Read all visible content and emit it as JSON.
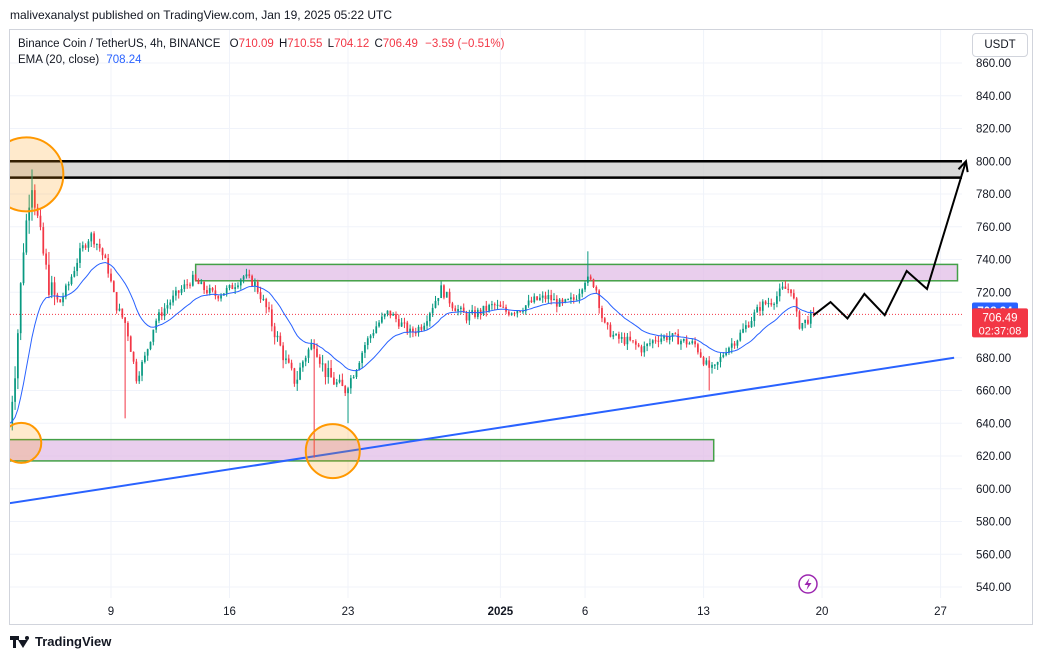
{
  "header": {
    "publisher": "malivexanalyst published on TradingView.com, Jan 19, 2025 05:22 UTC"
  },
  "legend": {
    "symbol": "Binance Coin / TetherUS, 4h, BINANCE",
    "open_label": "O",
    "open": "710.09",
    "high_label": "H",
    "high": "710.55",
    "low_label": "L",
    "low": "704.12",
    "close_label": "C",
    "close": "706.49",
    "change": "−3.59 (−0.51%)",
    "ema_label": "EMA (20, close)",
    "ema_value": "708.24"
  },
  "currency_button": "USDT",
  "price_labels": {
    "ema": "708.24",
    "last": "706.49",
    "countdown": "02:37:08"
  },
  "footer": {
    "brand": "TradingView"
  },
  "colors": {
    "up": "#089981",
    "down": "#f23645",
    "ema": "#2962ff",
    "zone_fill": "#e1bee7",
    "zone_border": "#43a047",
    "circle": "#ff9800",
    "trendline": "#2962ff",
    "resistance_fill": "#cfcfcf"
  },
  "chart_data": {
    "type": "candlestick",
    "ylim": [
      535,
      870
    ],
    "yticks": [
      "860.00",
      "840.00",
      "820.00",
      "800.00",
      "780.00",
      "760.00",
      "740.00",
      "720.00",
      "700.00",
      "680.00",
      "660.00",
      "640.00",
      "620.00",
      "600.00",
      "580.00",
      "560.00",
      "540.00"
    ],
    "xticks": [
      {
        "label": "9",
        "day": 9
      },
      {
        "label": "16",
        "day": 16
      },
      {
        "label": "23",
        "day": 23
      },
      {
        "label": "2025",
        "day": 32
      },
      {
        "label": "6",
        "day": 37
      },
      {
        "label": "13",
        "day": 44
      },
      {
        "label": "20",
        "day": 51
      },
      {
        "label": "27",
        "day": 58
      }
    ],
    "xlim": [
      2.9,
      59
    ],
    "anchors": [
      {
        "day": 3.0,
        "price": 640
      },
      {
        "day": 3.4,
        "price": 680
      },
      {
        "day": 3.8,
        "price": 745
      },
      {
        "day": 4.3,
        "price": 790
      },
      {
        "day": 4.8,
        "price": 755
      },
      {
        "day": 5.3,
        "price": 725
      },
      {
        "day": 5.9,
        "price": 712
      },
      {
        "day": 6.5,
        "price": 725
      },
      {
        "day": 7.2,
        "price": 745
      },
      {
        "day": 7.8,
        "price": 755
      },
      {
        "day": 8.3,
        "price": 748
      },
      {
        "day": 8.8,
        "price": 735
      },
      {
        "day": 9.3,
        "price": 712
      },
      {
        "day": 9.9,
        "price": 700
      },
      {
        "day": 10.5,
        "price": 668
      },
      {
        "day": 11.0,
        "price": 680
      },
      {
        "day": 11.6,
        "price": 702
      },
      {
        "day": 12.3,
        "price": 712
      },
      {
        "day": 13.0,
        "price": 720
      },
      {
        "day": 13.8,
        "price": 728
      },
      {
        "day": 14.5,
        "price": 722
      },
      {
        "day": 15.2,
        "price": 718
      },
      {
        "day": 16.0,
        "price": 722
      },
      {
        "day": 16.8,
        "price": 730
      },
      {
        "day": 17.5,
        "price": 725
      },
      {
        "day": 18.1,
        "price": 712
      },
      {
        "day": 18.7,
        "price": 695
      },
      {
        "day": 19.3,
        "price": 678
      },
      {
        "day": 19.9,
        "price": 665
      },
      {
        "day": 20.4,
        "price": 680
      },
      {
        "day": 21.0,
        "price": 690
      },
      {
        "day": 21.6,
        "price": 672
      },
      {
        "day": 22.2,
        "price": 665
      },
      {
        "day": 22.8,
        "price": 660
      },
      {
        "day": 23.4,
        "price": 672
      },
      {
        "day": 24.0,
        "price": 688
      },
      {
        "day": 24.7,
        "price": 700
      },
      {
        "day": 25.4,
        "price": 708
      },
      {
        "day": 26.0,
        "price": 702
      },
      {
        "day": 26.7,
        "price": 695
      },
      {
        "day": 27.4,
        "price": 700
      },
      {
        "day": 28.0,
        "price": 712
      },
      {
        "day": 28.5,
        "price": 722
      },
      {
        "day": 29.2,
        "price": 712
      },
      {
        "day": 30.0,
        "price": 705
      },
      {
        "day": 30.8,
        "price": 708
      },
      {
        "day": 31.6,
        "price": 712
      },
      {
        "day": 32.4,
        "price": 708
      },
      {
        "day": 33.2,
        "price": 710
      },
      {
        "day": 34.0,
        "price": 715
      },
      {
        "day": 34.8,
        "price": 717
      },
      {
        "day": 35.6,
        "price": 712
      },
      {
        "day": 36.4,
        "price": 716
      },
      {
        "day": 37.0,
        "price": 728
      },
      {
        "day": 37.6,
        "price": 725
      },
      {
        "day": 38.1,
        "price": 700
      },
      {
        "day": 38.8,
        "price": 692
      },
      {
        "day": 39.6,
        "price": 690
      },
      {
        "day": 40.4,
        "price": 685
      },
      {
        "day": 41.2,
        "price": 692
      },
      {
        "day": 42.0,
        "price": 693
      },
      {
        "day": 42.8,
        "price": 690
      },
      {
        "day": 43.5,
        "price": 688
      },
      {
        "day": 44.2,
        "price": 675
      },
      {
        "day": 44.6,
        "price": 672
      },
      {
        "day": 45.3,
        "price": 685
      },
      {
        "day": 46.0,
        "price": 692
      },
      {
        "day": 46.7,
        "price": 702
      },
      {
        "day": 47.4,
        "price": 712
      },
      {
        "day": 48.1,
        "price": 715
      },
      {
        "day": 48.7,
        "price": 722
      },
      {
        "day": 49.2,
        "price": 722
      },
      {
        "day": 49.6,
        "price": 700
      },
      {
        "day": 50.0,
        "price": 702
      },
      {
        "day": 50.5,
        "price": 706.49
      }
    ],
    "ema_last": 708.24,
    "last_close": 706.49,
    "zones": [
      {
        "d1": 2.9,
        "d2": 44.6,
        "p_low": 617,
        "p_high": 630
      },
      {
        "d1": 14.0,
        "d2": 59.0,
        "p_low": 727,
        "p_high": 737
      }
    ],
    "resistance": {
      "d1": 2.9,
      "d2": 59.5,
      "p_low": 790,
      "p_high": 800
    },
    "circles": [
      {
        "day": 4.0,
        "price": 792,
        "r": 37
      },
      {
        "day": 3.7,
        "price": 628,
        "r": 20
      },
      {
        "day": 22.1,
        "price": 623,
        "r": 27
      }
    ],
    "trendline": {
      "d1": 2.9,
      "p1": 591,
      "d2": 58.8,
      "p2": 680
    },
    "projection": [
      {
        "day": 50.5,
        "price": 706
      },
      {
        "day": 51.5,
        "price": 714
      },
      {
        "day": 52.5,
        "price": 704
      },
      {
        "day": 53.5,
        "price": 719
      },
      {
        "day": 54.7,
        "price": 706
      },
      {
        "day": 56.0,
        "price": 733
      },
      {
        "day": 57.2,
        "price": 722
      },
      {
        "day": 59.5,
        "price": 800
      }
    ],
    "current_price_line": 706.49
  }
}
